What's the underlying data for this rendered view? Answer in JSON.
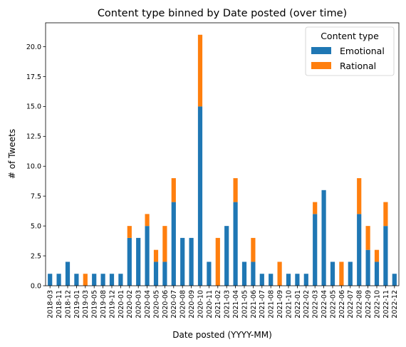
{
  "chart_data": {
    "type": "bar",
    "stacked": true,
    "title": "Content type binned by Date posted (over time)",
    "xlabel": "Date posted (YYYY-MM)",
    "ylabel": "# of Tweets",
    "ylim": [
      0,
      22
    ],
    "yticks": [
      "0.0",
      "2.5",
      "5.0",
      "7.5",
      "10.0",
      "12.5",
      "15.0",
      "17.5",
      "20.0"
    ],
    "legend": {
      "title": "Content type",
      "position": "top-right"
    },
    "categories": [
      "2018-03",
      "2018-11",
      "2018-12",
      "2019-01",
      "2019-03",
      "2019-05",
      "2019-08",
      "2019-12",
      "2020-01",
      "2020-02",
      "2020-03",
      "2020-04",
      "2020-05",
      "2020-06",
      "2020-07",
      "2020-08",
      "2020-09",
      "2020-10",
      "2020-11",
      "2021-02",
      "2021-03",
      "2021-04",
      "2021-05",
      "2021-06",
      "2021-07",
      "2021-08",
      "2021-09",
      "2021-10",
      "2022-01",
      "2022-02",
      "2022-03",
      "2022-04",
      "2022-05",
      "2022-06",
      "2022-07",
      "2022-08",
      "2022-09",
      "2022-10",
      "2022-11",
      "2022-12"
    ],
    "series": [
      {
        "name": "Emotional",
        "color": "#1f77b4",
        "values": [
          1,
          1,
          2,
          1,
          0,
          1,
          1,
          1,
          1,
          4,
          4,
          5,
          2,
          2,
          7,
          4,
          4,
          15,
          2,
          0,
          5,
          7,
          2,
          2,
          1,
          1,
          0,
          1,
          1,
          1,
          6,
          8,
          2,
          0,
          2,
          6,
          3,
          2,
          5,
          1
        ]
      },
      {
        "name": "Rational",
        "color": "#ff7f0e",
        "values": [
          0,
          0,
          0,
          0,
          1,
          0,
          0,
          0,
          0,
          1,
          0,
          1,
          1,
          3,
          2,
          0,
          0,
          6,
          0,
          4,
          0,
          2,
          0,
          2,
          0,
          0,
          2,
          0,
          0,
          0,
          1,
          0,
          0,
          2,
          0,
          3,
          2,
          1,
          2,
          0
        ]
      }
    ]
  }
}
